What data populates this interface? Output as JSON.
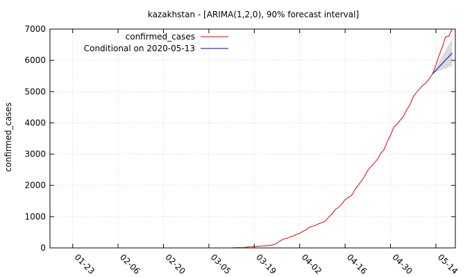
{
  "chart_data": {
    "type": "line",
    "title": "kazakhstan -  [ARIMA(1,2,0), 90% forecast interval]",
    "ylabel": "confirmed_cases",
    "xlabel": "",
    "ylim": [
      0,
      7000
    ],
    "xlim": [
      "2020-01-16",
      "2020-05-20"
    ],
    "grid": true,
    "legend_position": "top-right",
    "y_ticks": [
      0,
      1000,
      2000,
      3000,
      4000,
      5000,
      6000,
      7000
    ],
    "x_ticks": [
      "2020-01-23",
      "2020-02-06",
      "2020-02-20",
      "2020-03-05",
      "2020-03-19",
      "2020-04-02",
      "2020-04-16",
      "2020-04-30",
      "2020-05-14"
    ],
    "x_tick_labels": [
      "01-23",
      "02-06",
      "02-20",
      "03-05",
      "03-19",
      "04-02",
      "04-16",
      "04-30",
      "05-14"
    ],
    "series": [
      {
        "name": "confirmed_cases",
        "color": "#e00000",
        "x": [
          "2020-03-12",
          "2020-03-13",
          "2020-03-14",
          "2020-03-15",
          "2020-03-16",
          "2020-03-17",
          "2020-03-18",
          "2020-03-19",
          "2020-03-20",
          "2020-03-21",
          "2020-03-22",
          "2020-03-23",
          "2020-03-24",
          "2020-03-25",
          "2020-03-26",
          "2020-03-27",
          "2020-03-28",
          "2020-03-29",
          "2020-03-30",
          "2020-03-31",
          "2020-04-01",
          "2020-04-02",
          "2020-04-03",
          "2020-04-04",
          "2020-04-05",
          "2020-04-06",
          "2020-04-07",
          "2020-04-08",
          "2020-04-09",
          "2020-04-10",
          "2020-04-11",
          "2020-04-12",
          "2020-04-13",
          "2020-04-14",
          "2020-04-15",
          "2020-04-16",
          "2020-04-17",
          "2020-04-18",
          "2020-04-19",
          "2020-04-20",
          "2020-04-21",
          "2020-04-22",
          "2020-04-23",
          "2020-04-24",
          "2020-04-25",
          "2020-04-26",
          "2020-04-27",
          "2020-04-28",
          "2020-04-29",
          "2020-04-30",
          "2020-05-01",
          "2020-05-02",
          "2020-05-03",
          "2020-05-04",
          "2020-05-05",
          "2020-05-06",
          "2020-05-07",
          "2020-05-08",
          "2020-05-09",
          "2020-05-10",
          "2020-05-11",
          "2020-05-12",
          "2020-05-13",
          "2020-05-14",
          "2020-05-15",
          "2020-05-16",
          "2020-05-17",
          "2020-05-18",
          "2020-05-19"
        ],
        "values": [
          0,
          6,
          9,
          9,
          10,
          33,
          35,
          44,
          53,
          60,
          62,
          72,
          81,
          111,
          150,
          228,
          284,
          302,
          348,
          380,
          435,
          464,
          531,
          584,
          662,
          697,
          727,
          781,
          812,
          870,
          990,
          1091,
          1232,
          1295,
          1402,
          1546,
          1615,
          1676,
          1852,
          1995,
          2135,
          2289,
          2482,
          2601,
          2717,
          2835,
          3027,
          3138,
          3402,
          3597,
          3858,
          3952,
          4086,
          4205,
          4422,
          4578,
          4834,
          4975,
          5090,
          5207,
          5279,
          5417,
          5571,
          5850,
          6157,
          6440,
          6751,
          6772,
          7000
        ]
      },
      {
        "name": "Conditional on 2020-05-13",
        "color": "#0000c8",
        "x": [
          "2020-05-13",
          "2020-05-19"
        ],
        "values": [
          5571,
          6230
        ],
        "interval_90": {
          "lower": [
            5571,
            5830
          ],
          "upper": [
            5571,
            6700
          ]
        }
      }
    ]
  }
}
